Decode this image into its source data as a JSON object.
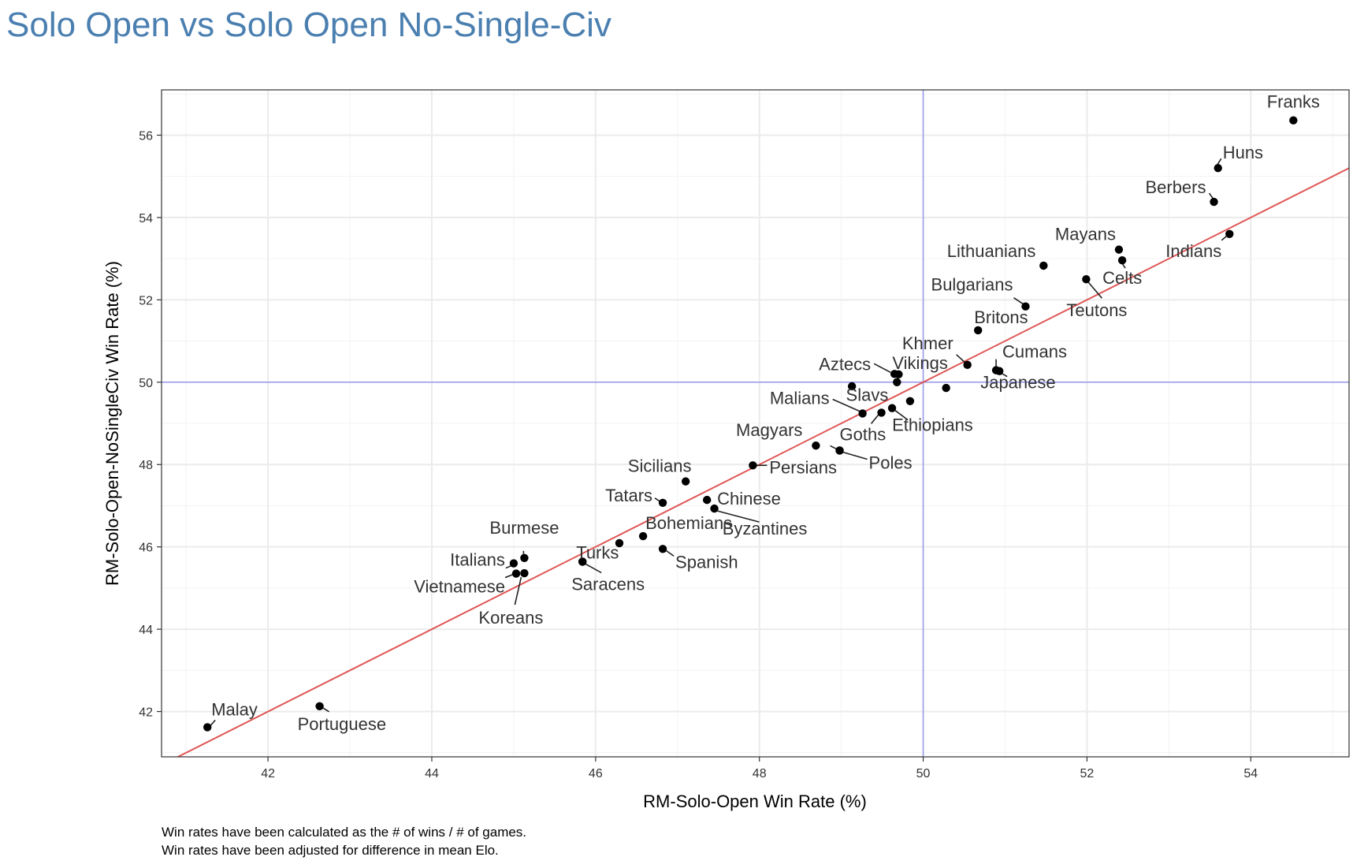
{
  "chart_data": {
    "type": "scatter",
    "title": "Solo Open vs Solo Open No-Single-Civ",
    "xlabel": "RM-Solo-Open Win Rate (%)",
    "ylabel": "RM-Solo-Open-NoSingleCiv Win Rate (%)",
    "xlim": [
      40.7,
      55.2
    ],
    "ylim": [
      40.9,
      57.1
    ],
    "x_ticks": [
      42,
      44,
      46,
      48,
      50,
      52,
      54
    ],
    "y_ticks": [
      42,
      44,
      46,
      48,
      50,
      52,
      54,
      56
    ],
    "grid": true,
    "reference_lines": {
      "vertical_x": 50,
      "horizontal_y": 50,
      "fit_line": {
        "intercept": 0,
        "slope": 1
      }
    },
    "colors": {
      "points": "#000000",
      "reference": "#9999ee",
      "fit": "#e05555",
      "title": "#4a7fb0",
      "grid": "#ebebeb"
    },
    "points": [
      {
        "label": "Franks",
        "x": 54.52,
        "y": 56.36
      },
      {
        "label": "Huns",
        "x": 53.6,
        "y": 55.2
      },
      {
        "label": "Berbers",
        "x": 53.55,
        "y": 54.38
      },
      {
        "label": "Indians",
        "x": 53.74,
        "y": 53.6
      },
      {
        "label": "Mayans",
        "x": 52.39,
        "y": 53.22
      },
      {
        "label": "Celts",
        "x": 52.43,
        "y": 52.96
      },
      {
        "label": "Lithuanians",
        "x": 51.47,
        "y": 52.83
      },
      {
        "label": "Teutons",
        "x": 51.99,
        "y": 52.5
      },
      {
        "label": "Bulgarians",
        "x": 51.25,
        "y": 51.84
      },
      {
        "label": "Britons",
        "x": 50.67,
        "y": 51.26
      },
      {
        "label": "Khmer",
        "x": 50.54,
        "y": 50.42
      },
      {
        "label": "Cumans",
        "x": 50.89,
        "y": 50.29
      },
      {
        "label": "Japanese",
        "x": 50.93,
        "y": 50.27
      },
      {
        "label": "Aztecs",
        "x": 49.65,
        "y": 50.2
      },
      {
        "label": "Vikings",
        "x": 49.7,
        "y": 50.19
      },
      {
        "label": "",
        "x": 49.68,
        "y": 50.0
      },
      {
        "label": "",
        "x": 49.13,
        "y": 49.9
      },
      {
        "label": "",
        "x": 50.28,
        "y": 49.86
      },
      {
        "label": "Malians",
        "x": 49.26,
        "y": 49.24
      },
      {
        "label": "Slavs",
        "x": 49.49,
        "y": 49.26
      },
      {
        "label": "Ethiopians",
        "x": 49.62,
        "y": 49.37
      },
      {
        "label": "",
        "x": 49.84,
        "y": 49.54
      },
      {
        "label": "Magyars",
        "x": 48.69,
        "y": 48.46
      },
      {
        "label": "Goths",
        "x": 48.98,
        "y": 48.34
      },
      {
        "label": "Poles",
        "x": 48.98,
        "y": 48.34
      },
      {
        "label": "Persians",
        "x": 47.92,
        "y": 47.98
      },
      {
        "label": "Sicilians",
        "x": 47.1,
        "y": 47.59
      },
      {
        "label": "Tatars",
        "x": 46.82,
        "y": 47.07
      },
      {
        "label": "Chinese",
        "x": 47.36,
        "y": 47.14
      },
      {
        "label": "Byzantines",
        "x": 47.45,
        "y": 46.93
      },
      {
        "label": "Bohemians",
        "x": 46.58,
        "y": 46.26
      },
      {
        "label": "",
        "x": 46.29,
        "y": 46.09
      },
      {
        "label": "Spanish",
        "x": 46.82,
        "y": 45.95
      },
      {
        "label": "Turks",
        "x": 45.84,
        "y": 45.64
      },
      {
        "label": "Saracens",
        "x": 45.84,
        "y": 45.64
      },
      {
        "label": "Burmese",
        "x": 45.13,
        "y": 45.73
      },
      {
        "label": "Italians",
        "x": 45.0,
        "y": 45.6
      },
      {
        "label": "Vietnamese",
        "x": 45.03,
        "y": 45.35
      },
      {
        "label": "Koreans",
        "x": 45.13,
        "y": 45.36
      },
      {
        "label": "Portuguese",
        "x": 42.63,
        "y": 42.13
      },
      {
        "label": "Malay",
        "x": 41.26,
        "y": 41.62
      }
    ]
  },
  "caption": {
    "line1": "Win rates have been calculated as the # of wins / # of games.",
    "line2": "Win rates have been adjusted for difference in mean Elo."
  }
}
